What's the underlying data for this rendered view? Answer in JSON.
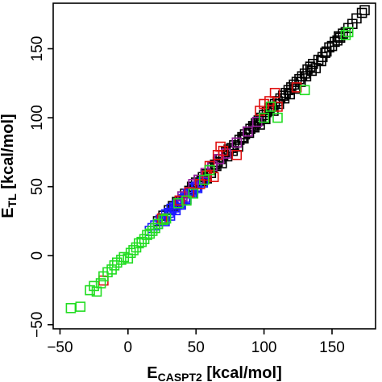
{
  "chart_data": {
    "type": "scatter",
    "title": "",
    "xlabel": {
      "main": "E",
      "sub": "CASPT2",
      "unit": " [kcal/mol]"
    },
    "ylabel": {
      "main": "E",
      "sub": "TL",
      "unit": " [kcal/mol]"
    },
    "xlim": [
      -55,
      182
    ],
    "ylim": [
      -53,
      183
    ],
    "x_ticks": [
      -50,
      0,
      50,
      100,
      150
    ],
    "y_ticks": [
      -50,
      0,
      50,
      100,
      150
    ],
    "marker": "open-square",
    "grid": false,
    "legend": "none",
    "series": [
      {
        "color": "#000000",
        "points": [
          [
            22,
            25
          ],
          [
            26,
            29
          ],
          [
            30,
            33
          ],
          [
            33,
            36
          ],
          [
            36,
            39
          ],
          [
            38,
            40
          ],
          [
            40,
            43
          ],
          [
            42,
            45
          ],
          [
            45,
            47
          ],
          [
            47,
            50
          ],
          [
            50,
            53
          ],
          [
            52,
            55
          ],
          [
            55,
            57
          ],
          [
            57,
            59
          ],
          [
            60,
            62
          ],
          [
            62,
            64
          ],
          [
            64,
            66
          ],
          [
            66,
            68
          ],
          [
            68,
            70
          ],
          [
            70,
            73
          ],
          [
            72,
            75
          ],
          [
            74,
            77
          ],
          [
            76,
            78
          ],
          [
            78,
            80
          ],
          [
            80,
            82
          ],
          [
            82,
            84
          ],
          [
            84,
            86
          ],
          [
            86,
            88
          ],
          [
            88,
            90
          ],
          [
            90,
            92
          ],
          [
            92,
            94
          ],
          [
            94,
            96
          ],
          [
            96,
            98
          ],
          [
            98,
            100
          ],
          [
            100,
            102
          ],
          [
            102,
            104
          ],
          [
            104,
            106
          ],
          [
            106,
            108
          ],
          [
            108,
            110
          ],
          [
            110,
            112
          ],
          [
            112,
            114
          ],
          [
            114,
            116
          ],
          [
            116,
            118
          ],
          [
            118,
            120
          ],
          [
            120,
            122
          ],
          [
            122,
            124
          ],
          [
            124,
            126
          ],
          [
            126,
            128
          ],
          [
            128,
            130
          ],
          [
            130,
            132
          ],
          [
            132,
            135
          ],
          [
            134,
            137
          ],
          [
            136,
            139
          ],
          [
            140,
            142
          ],
          [
            143,
            144
          ],
          [
            146,
            148
          ],
          [
            150,
            152
          ],
          [
            152,
            155
          ],
          [
            154,
            156
          ],
          [
            156,
            158
          ],
          [
            160,
            162
          ],
          [
            162,
            165
          ],
          [
            165,
            168
          ],
          [
            168,
            172
          ],
          [
            172,
            176
          ],
          [
            174,
            178
          ],
          [
            48,
            48
          ],
          [
            54,
            54
          ],
          [
            58,
            56
          ],
          [
            61,
            60
          ],
          [
            65,
            65
          ],
          [
            69,
            67
          ],
          [
            73,
            72
          ],
          [
            77,
            76
          ],
          [
            81,
            79
          ],
          [
            85,
            85
          ],
          [
            89,
            89
          ],
          [
            93,
            93
          ],
          [
            97,
            95
          ],
          [
            101,
            99
          ],
          [
            104,
            107
          ],
          [
            107,
            105
          ],
          [
            111,
            110
          ],
          [
            115,
            114
          ],
          [
            119,
            117
          ],
          [
            123,
            121
          ],
          [
            127,
            126
          ],
          [
            131,
            130
          ],
          [
            135,
            134
          ],
          [
            138,
            136
          ],
          [
            142,
            141
          ],
          [
            145,
            147
          ],
          [
            148,
            151
          ],
          [
            155,
            159
          ],
          [
            158,
            161
          ]
        ]
      },
      {
        "color": "#1a1aff",
        "points": [
          [
            16,
            18
          ],
          [
            18,
            20
          ],
          [
            20,
            22
          ],
          [
            22,
            23
          ],
          [
            24,
            26
          ],
          [
            26,
            27
          ],
          [
            28,
            30
          ],
          [
            30,
            31
          ],
          [
            32,
            34
          ],
          [
            34,
            35
          ],
          [
            36,
            37
          ],
          [
            38,
            38
          ],
          [
            40,
            41
          ],
          [
            42,
            42
          ],
          [
            44,
            45
          ],
          [
            46,
            46
          ],
          [
            48,
            49
          ],
          [
            50,
            50
          ],
          [
            27,
            25
          ],
          [
            31,
            29
          ],
          [
            35,
            33
          ],
          [
            39,
            37
          ],
          [
            43,
            41
          ],
          [
            47,
            45
          ],
          [
            51,
            49
          ],
          [
            55,
            53
          ]
        ]
      },
      {
        "color": "#9a1fa0",
        "points": [
          [
            40,
            43
          ],
          [
            48,
            52
          ],
          [
            52,
            55
          ],
          [
            57,
            60
          ],
          [
            62,
            65
          ],
          [
            67,
            70
          ],
          [
            72,
            74
          ],
          [
            80,
            82
          ],
          [
            88,
            90
          ],
          [
            95,
            97
          ]
        ]
      },
      {
        "color": "#e01010",
        "points": [
          [
            -18,
            -18
          ],
          [
            25,
            27
          ],
          [
            38,
            40
          ],
          [
            45,
            46
          ],
          [
            53,
            52
          ],
          [
            58,
            58
          ],
          [
            60,
            65
          ],
          [
            63,
            57
          ],
          [
            66,
            73
          ],
          [
            68,
            79
          ],
          [
            70,
            76
          ],
          [
            80,
            73
          ],
          [
            97,
            105
          ],
          [
            100,
            110
          ],
          [
            104,
            112
          ],
          [
            108,
            118
          ],
          [
            110,
            108
          ],
          [
            124,
            122
          ]
        ]
      },
      {
        "color": "#22dd22",
        "points": [
          [
            -42,
            -38
          ],
          [
            -35,
            -37
          ],
          [
            -28,
            -25
          ],
          [
            -25,
            -22
          ],
          [
            -23,
            -26
          ],
          [
            -20,
            -20
          ],
          [
            -18,
            -15
          ],
          [
            -15,
            -12
          ],
          [
            -12,
            -10
          ],
          [
            -10,
            -7
          ],
          [
            -8,
            -5
          ],
          [
            -5,
            -3
          ],
          [
            -3,
            -1
          ],
          [
            0,
            -2
          ],
          [
            2,
            2
          ],
          [
            4,
            4
          ],
          [
            6,
            6
          ],
          [
            8,
            9
          ],
          [
            10,
            10
          ],
          [
            12,
            12
          ],
          [
            14,
            15
          ],
          [
            16,
            16
          ],
          [
            18,
            18
          ],
          [
            20,
            20
          ],
          [
            22,
            23
          ],
          [
            26,
            26
          ],
          [
            28,
            27
          ],
          [
            37,
            38
          ],
          [
            43,
            40
          ],
          [
            48,
            45
          ],
          [
            56,
            55
          ],
          [
            60,
            62
          ],
          [
            100,
            100
          ],
          [
            105,
            108
          ],
          [
            110,
            100
          ],
          [
            130,
            120
          ],
          [
            160,
            160
          ],
          [
            162,
            162
          ]
        ]
      }
    ]
  }
}
